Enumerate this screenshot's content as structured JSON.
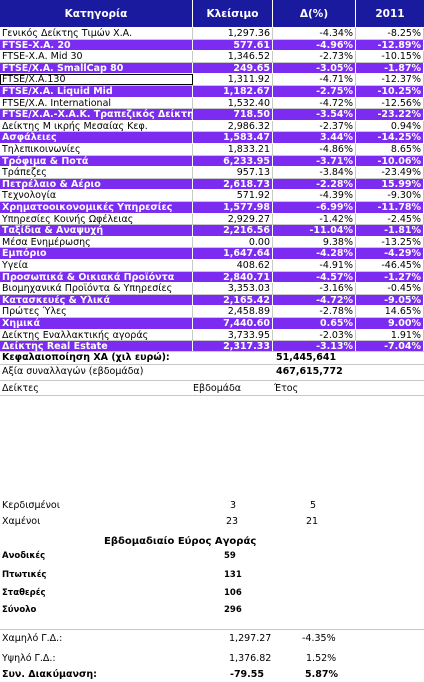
{
  "header": {
    "col1": "Κατηγορία",
    "col2": "Κλείσιμο",
    "col3": "Δ(%)",
    "col4": "2011"
  },
  "rows": [
    {
      "name": "Γενικός Δείκτης Τιμών Χ.Α.",
      "close": "1,297.36",
      "change": "-4.34%",
      "ytd": "-8.25%",
      "hl": false
    },
    {
      "name": "FTSE-Χ.Α. 20",
      "close": "577.61",
      "change": "-4.96%",
      "ytd": "-12.89%",
      "hl": true
    },
    {
      "name": "FTSE-Χ.Α. Mid 30",
      "close": "1,346.52",
      "change": "-2.73%",
      "ytd": "-10.15%",
      "hl": false
    },
    {
      "name": "FTSE/Χ.Α. SmallCap 80",
      "close": "249.65",
      "change": "-3.05%",
      "ytd": "-1.87%",
      "hl": true
    },
    {
      "name": "FTSE/Χ.Α.130",
      "close": "1,311.92",
      "change": "-4.71%",
      "ytd": "-12.37%",
      "hl": false,
      "boxed": true
    },
    {
      "name": "FTSE/Χ.Α. Liquid Mid",
      "close": "1,182.67",
      "change": "-2.75%",
      "ytd": "-10.25%",
      "hl": true
    },
    {
      "name": "FTSE/Χ.Α. International",
      "close": "1,532.40",
      "change": "-4.72%",
      "ytd": "-12.56%",
      "hl": false
    },
    {
      "name": "FTSE/Χ.Α.-Χ.Α.Κ. Τραπεζικός Δείκτης",
      "close": "718.50",
      "change": "-3.54%",
      "ytd": "-23.22%",
      "hl": true
    },
    {
      "name": "Δείκτης Μ ικρής Μεσαίας Κεφ.",
      "close": "2,986.32",
      "change": "-2.37%",
      "ytd": "0.94%",
      "hl": false
    },
    {
      "name": "Ασφάλειες",
      "close": "1,583.47",
      "change": "3.44%",
      "ytd": "-14.25%",
      "hl": true
    },
    {
      "name": "Τηλεπικοινωνίες",
      "close": "1,833.21",
      "change": "-4.86%",
      "ytd": "8.65%",
      "hl": false
    },
    {
      "name": "Τρόφιμα & Ποτά",
      "close": "6,233.95",
      "change": "-3.71%",
      "ytd": "-10.06%",
      "hl": true
    },
    {
      "name": "Τράπεζες",
      "close": "957.13",
      "change": "-3.84%",
      "ytd": "-23.49%",
      "hl": false
    },
    {
      "name": "Πετρέλαιο & Αέριο",
      "close": "2,618.73",
      "change": "-2.28%",
      "ytd": "15.99%",
      "hl": true
    },
    {
      "name": "Τεχνολογία",
      "close": "571.92",
      "change": "-4.39%",
      "ytd": "-9.30%",
      "hl": false
    },
    {
      "name": "Χρηματοοικονομικές Υπηρεσίες",
      "close": "1,577.98",
      "change": "-6.99%",
      "ytd": "-11.78%",
      "hl": true
    },
    {
      "name": "Υπηρεσίες Κοινής Ωφέλειας",
      "close": "2,929.27",
      "change": "-1.42%",
      "ytd": "-2.45%",
      "hl": false
    },
    {
      "name": "Ταξίδια & Αναψυχή",
      "close": "2,216.56",
      "change": "-11.04%",
      "ytd": "-1.81%",
      "hl": true
    },
    {
      "name": "Μέσα Ενημέρωσης",
      "close": "0.00",
      "change": "9.38%",
      "ytd": "-13.25%",
      "hl": false
    },
    {
      "name": "Εμπόριο",
      "close": "1,647.64",
      "change": "-4.28%",
      "ytd": "-4.29%",
      "hl": true
    },
    {
      "name": "Υγεία",
      "close": "408.62",
      "change": "-4.91%",
      "ytd": "-46.45%",
      "hl": false
    },
    {
      "name": "Προσωπικά & Οικιακά Προϊόντα",
      "close": "2,840.71",
      "change": "-4.57%",
      "ytd": "-1.27%",
      "hl": true
    },
    {
      "name": "Βιομηχανικά Προϊόντα & Υπηρεσίες",
      "close": "3,353.03",
      "change": "-3.16%",
      "ytd": "-0.45%",
      "hl": false
    },
    {
      "name": "Κατασκευές & Υλικά",
      "close": "2,165.42",
      "change": "-4.72%",
      "ytd": "-9.05%",
      "hl": true
    },
    {
      "name": "Πρώτες Ύλες",
      "close": "2,458.89",
      "change": "-2.78%",
      "ytd": "14.65%",
      "hl": false
    },
    {
      "name": "Χημικά",
      "close": "7,440.60",
      "change": "0.65%",
      "ytd": "9.00%",
      "hl": true
    },
    {
      "name": "Δείκτης Εναλλακτικής αγοράς",
      "close": "3,733.95",
      "change": "-2.03%",
      "ytd": "1.91%",
      "hl": false
    },
    {
      "name": "Δείκτης Real Estate",
      "close": "2,317.33",
      "change": "-3.13%",
      "ytd": "-7.04%",
      "hl": true
    }
  ],
  "summary": {
    "cap_label": "Κεφαλαιοποίηση ΧΑ (χιλ ευρώ):",
    "cap_value": "51,445,641",
    "vol_label": "Αξία συναλλαγών (εβδομάδα)",
    "vol_value": "467,615,772",
    "indices_label": "Δείκτες",
    "week_label": "Εβδομάδα",
    "year_label": "Έτος",
    "gainers_label": "Κερδισμένοι",
    "gainers_week": "3",
    "gainers_year": "5",
    "losers_label": "Χαμένοι",
    "losers_week": "23",
    "losers_year": "21"
  },
  "breadth": {
    "title": "Εβδομαδιαίο Εύρος Αγοράς",
    "items": [
      {
        "label": "Ανοδικές",
        "value": "59"
      },
      {
        "label": "Πτωτικές",
        "value": "131"
      },
      {
        "label": "Σταθερές",
        "value": "106"
      },
      {
        "label": "Σύνολο",
        "value": "296"
      }
    ]
  },
  "range": {
    "low_label": "Χαμηλό Γ.Δ.:",
    "low_value": "1,297.27",
    "low_pct": "-4.35%",
    "high_label": "Υψηλό Γ.Δ.:",
    "high_value": "1,376.82",
    "high_pct": "1.52%",
    "span_label": "Συν. Διακύμανση:",
    "span_value": "-79.55",
    "span_pct": "5.87%"
  },
  "colors": {
    "header": "#1a1a9e",
    "highlight": "#7b2cf0"
  }
}
